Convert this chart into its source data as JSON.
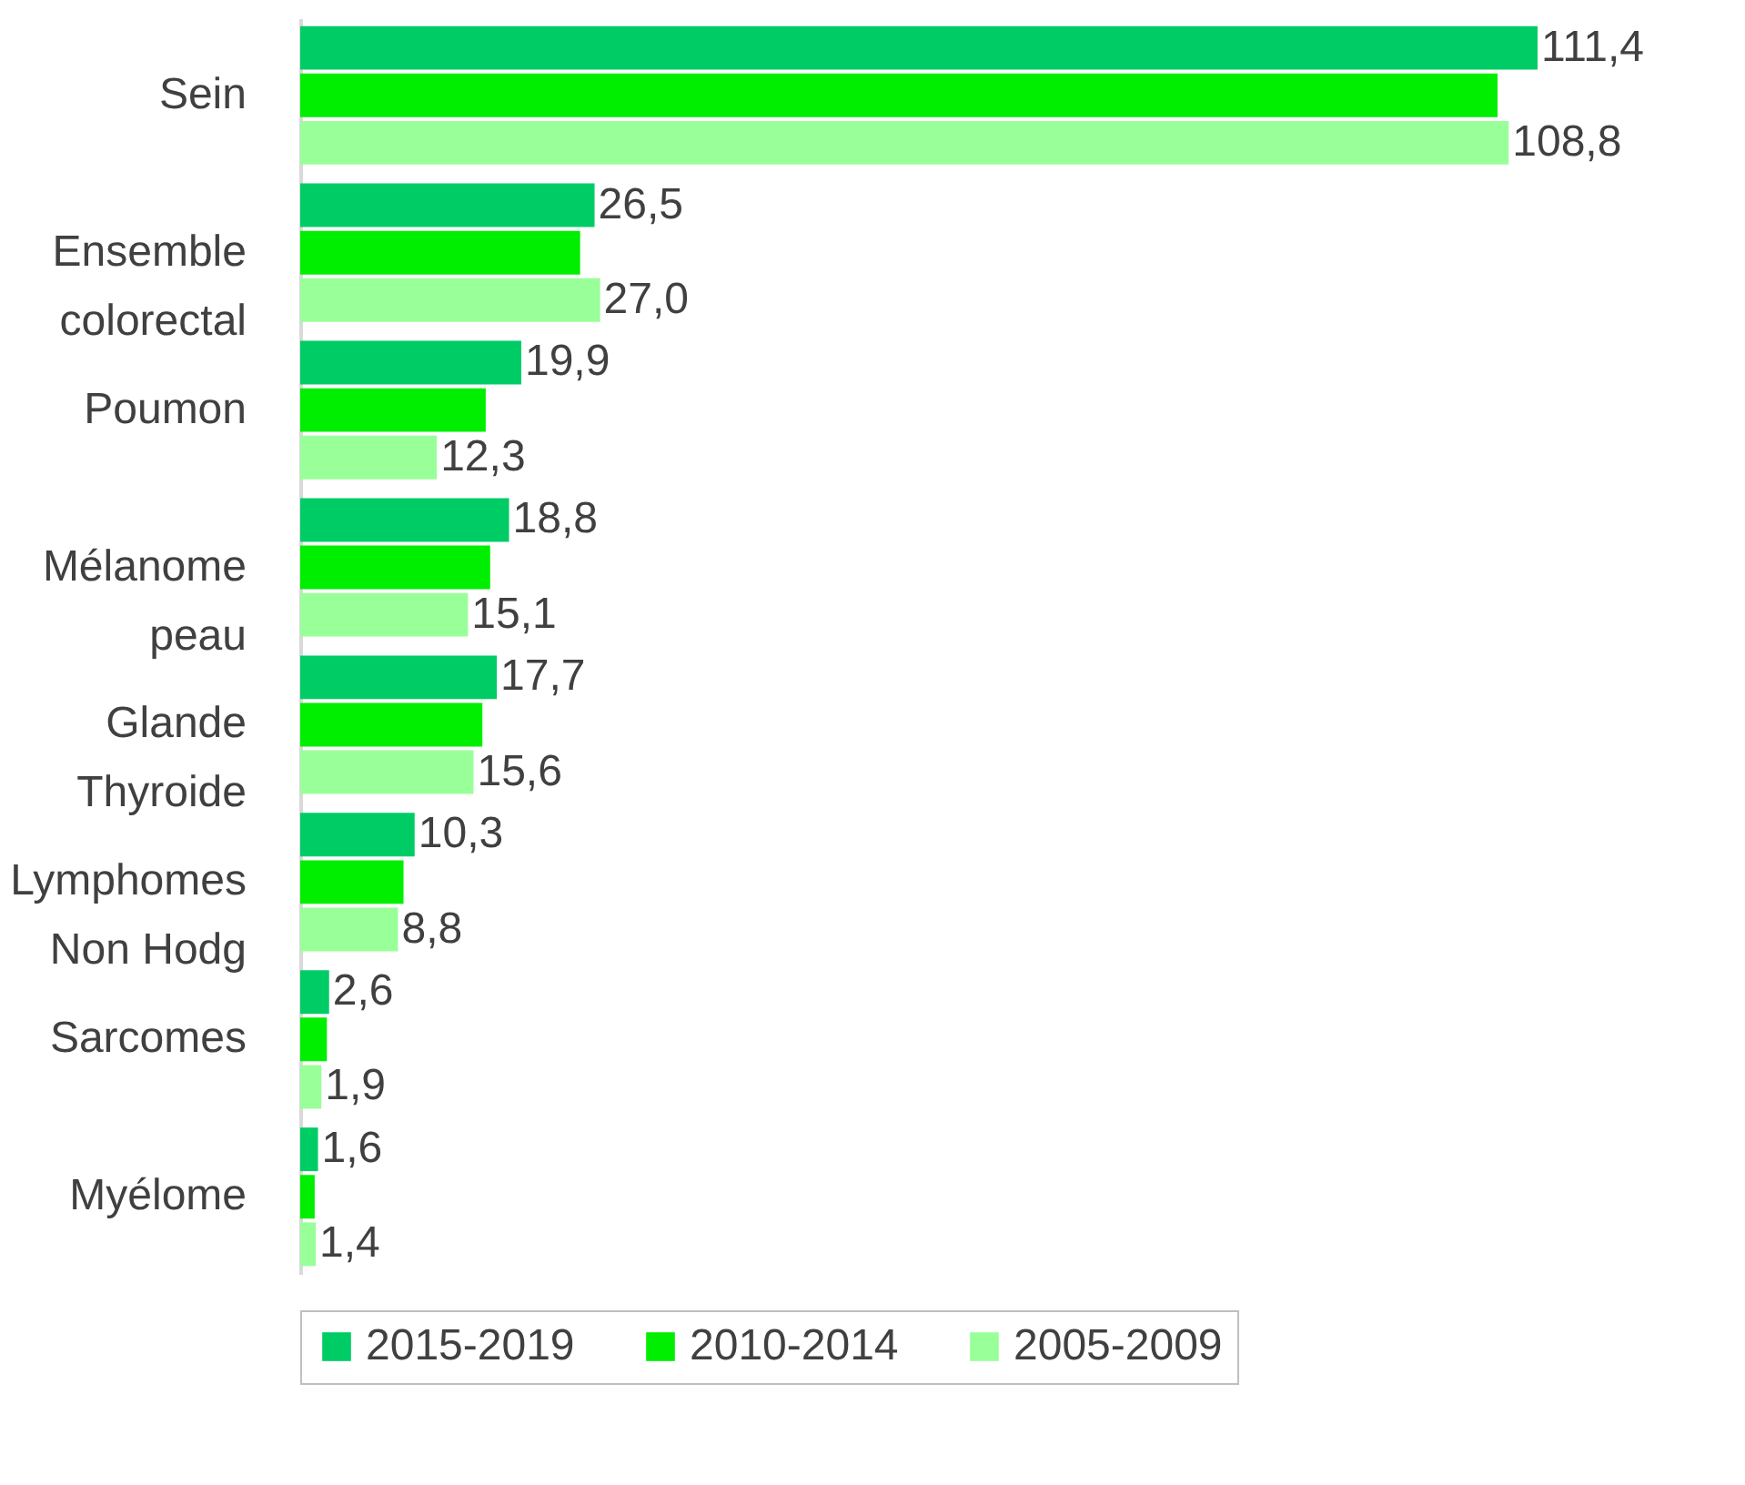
{
  "chart_data": {
    "type": "bar",
    "orientation": "horizontal",
    "categories": [
      "Sein",
      "Ensemble\ncolorectal",
      "Poumon",
      "Mélanome\npeau",
      "Glande\nThyroide",
      "Lymphomes\nNon Hodg",
      "Sarcomes",
      "Myélome"
    ],
    "series": [
      {
        "name": "2015-2019",
        "color": "#00cc66",
        "values": [
          111.4,
          26.5,
          19.9,
          18.8,
          17.7,
          10.3,
          2.6,
          1.6
        ],
        "value_labels": [
          "111,4",
          "26,5",
          "19,9",
          "18,8",
          "17,7",
          "10,3",
          "2,6",
          "1,6"
        ]
      },
      {
        "name": "2010-2014",
        "color": "#00ee00",
        "values": [
          107.8,
          25.2,
          16.7,
          17.1,
          16.4,
          9.3,
          2.4,
          1.3
        ]
      },
      {
        "name": "2005-2009",
        "color": "#99ff99",
        "values": [
          108.8,
          27.0,
          12.3,
          15.1,
          15.6,
          8.8,
          1.9,
          1.4
        ],
        "value_labels": [
          "108,8",
          "27,0",
          "12,3",
          "15,1",
          "15,6",
          "8,8",
          "1,9",
          "1,4"
        ]
      }
    ],
    "legend": "bottom",
    "grid": false
  }
}
